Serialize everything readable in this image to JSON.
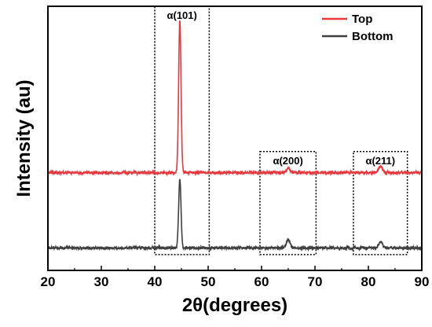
{
  "chart_data": {
    "type": "line",
    "title": "",
    "xlabel": "2θ(degrees)",
    "ylabel": "Intensity (au)",
    "xlim": [
      20,
      90
    ],
    "ylim": [
      0,
      100
    ],
    "xticks": [
      20,
      30,
      40,
      50,
      60,
      70,
      80,
      90
    ],
    "y_tick_labels_shown": false,
    "grid": false,
    "legend_position": "top-right",
    "series": [
      {
        "name": "Top",
        "color": "#e8383d",
        "baseline": 37,
        "peaks": [
          {
            "x": 44.7,
            "height": 58,
            "width": 0.22
          },
          {
            "x": 65.0,
            "height": 1.6,
            "width": 0.35
          },
          {
            "x": 82.3,
            "height": 2.5,
            "width": 0.35
          }
        ]
      },
      {
        "name": "Bottom",
        "color": "#3f3f3f",
        "baseline": 8.5,
        "peaks": [
          {
            "x": 44.7,
            "height": 26,
            "width": 0.22
          },
          {
            "x": 65.0,
            "height": 3.0,
            "width": 0.35
          },
          {
            "x": 82.3,
            "height": 2.5,
            "width": 0.35
          }
        ]
      }
    ],
    "annotations": [
      {
        "label": "α(101)",
        "x_range": [
          40,
          50.2
        ],
        "y_range": [
          6,
          100
        ]
      },
      {
        "label": "α(200)",
        "x_range": [
          59.7,
          70.2
        ],
        "y_range": [
          6,
          45
        ]
      },
      {
        "label": "α(211)",
        "x_range": [
          77.2,
          87.3
        ],
        "y_range": [
          6,
          45
        ]
      }
    ]
  }
}
